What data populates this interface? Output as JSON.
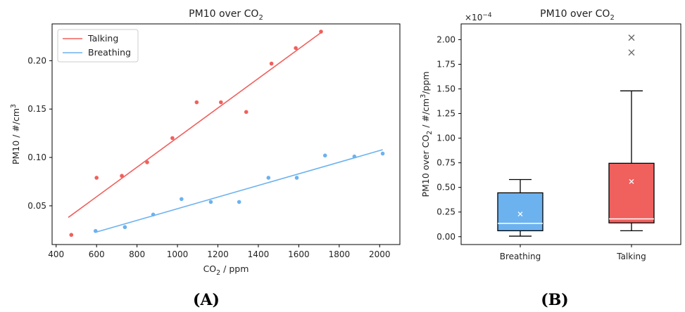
{
  "panel_labels": {
    "a": "(A)",
    "b": "(B)"
  },
  "chart_data": [
    {
      "type": "scatter",
      "title_main": "PM10 over CO",
      "title_sub": "2",
      "xlabel_main": "CO",
      "xlabel_sub": "2",
      "xlabel_rest": " / ppm",
      "ylabel_main": "PM10 / #/cm",
      "ylabel_sup": "3",
      "xlim": [
        380,
        2100
      ],
      "ylim": [
        0.01,
        0.238
      ],
      "xticks": [
        400,
        600,
        800,
        1000,
        1200,
        1400,
        1600,
        1800,
        2000
      ],
      "yticks": [
        0.05,
        0.1,
        0.15,
        0.2
      ],
      "ytick_labels": [
        "0.05",
        "0.10",
        "0.15",
        "0.20"
      ],
      "legend_position": "top-left",
      "series": [
        {
          "name": "Talking",
          "color": "#f0605d",
          "points": [
            [
              475,
              0.02
            ],
            [
              600,
              0.079
            ],
            [
              725,
              0.081
            ],
            [
              850,
              0.095
            ],
            [
              975,
              0.12
            ],
            [
              1095,
              0.157
            ],
            [
              1215,
              0.157
            ],
            [
              1340,
              0.147
            ],
            [
              1465,
              0.197
            ],
            [
              1585,
              0.213
            ],
            [
              1710,
              0.23
            ]
          ],
          "fit": [
            [
              460,
              0.038
            ],
            [
              1710,
              0.229
            ]
          ]
        },
        {
          "name": "Breathing",
          "color": "#6cb2ef",
          "points": [
            [
              595,
              0.024
            ],
            [
              740,
              0.028
            ],
            [
              880,
              0.041
            ],
            [
              1020,
              0.057
            ],
            [
              1165,
              0.054
            ],
            [
              1305,
              0.054
            ],
            [
              1450,
              0.079
            ],
            [
              1590,
              0.079
            ],
            [
              1730,
              0.102
            ],
            [
              1875,
              0.101
            ],
            [
              2015,
              0.104
            ]
          ],
          "fit": [
            [
              600,
              0.023
            ],
            [
              2015,
              0.108
            ]
          ]
        }
      ]
    },
    {
      "type": "box",
      "title_main": "PM10 over CO",
      "title_sub": "2",
      "ylabel_a": "PM10 over CO",
      "ylabel_a_sub": "2",
      "ylabel_b": " / #/cm",
      "ylabel_b_sup": "3",
      "ylabel_c": "/ppm",
      "scale_label": "×10",
      "scale_exp": "−4",
      "ylim": [
        -0.08,
        2.16
      ],
      "yticks": [
        0.0,
        0.25,
        0.5,
        0.75,
        1.0,
        1.25,
        1.5,
        1.75,
        2.0
      ],
      "ytick_labels": [
        "0.00",
        "0.25",
        "0.50",
        "0.75",
        "1.00",
        "1.25",
        "1.50",
        "1.75",
        "2.00"
      ],
      "categories": [
        "Breathing",
        "Talking"
      ],
      "boxes": [
        {
          "name": "Breathing",
          "color": "#6cb2ef",
          "whisker_low": 0.005,
          "q1": 0.06,
          "median": 0.135,
          "q3": 0.445,
          "whisker_high": 0.58,
          "mean": 0.23,
          "outliers": []
        },
        {
          "name": "Talking",
          "color": "#f0605d",
          "whisker_low": 0.06,
          "q1": 0.14,
          "median": 0.18,
          "q3": 0.745,
          "whisker_high": 1.48,
          "mean": 0.56,
          "outliers": [
            1.87,
            2.02
          ]
        }
      ]
    }
  ]
}
